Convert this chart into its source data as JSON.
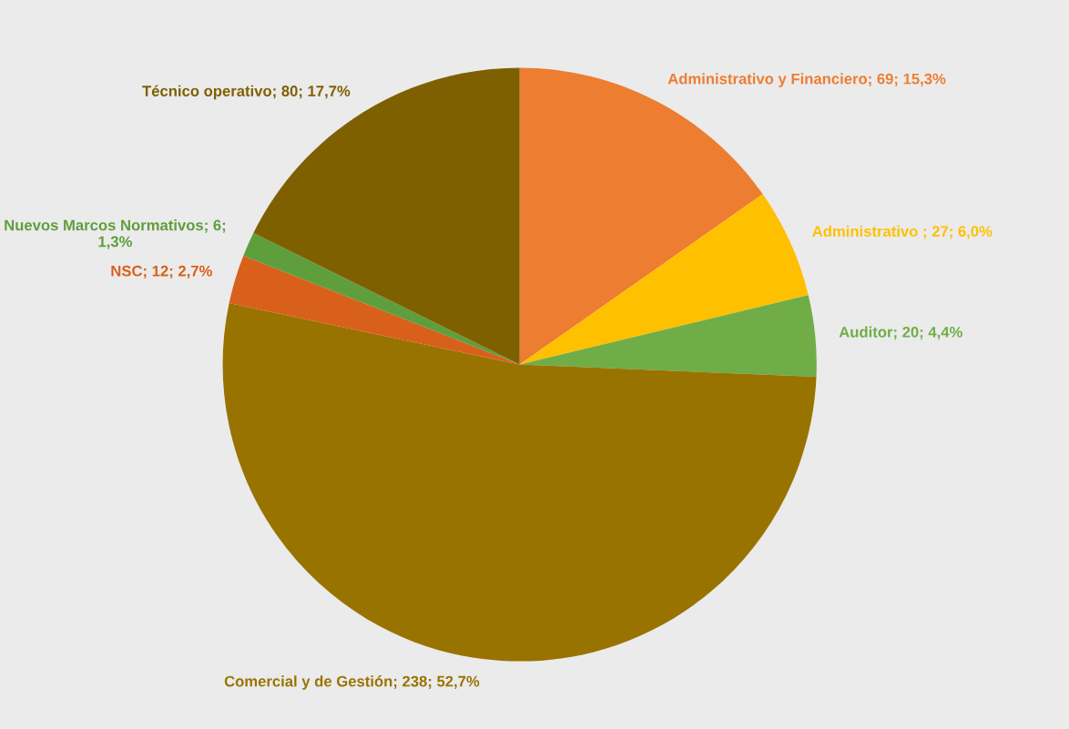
{
  "chart_data": {
    "type": "pie",
    "categories": [
      "Administrativo y Financiero",
      "Administrativo ",
      "Auditor",
      "Comercial y de Gestión",
      "NSC",
      "Nuevos Marcos Normativos",
      "Técnico operativo"
    ],
    "values": [
      69,
      27,
      20,
      238,
      12,
      6,
      80
    ],
    "value_labels": [
      "69; 15,3%",
      "27; 6,0%",
      "20; 4,4%",
      "238; 52,7%",
      "12; 2,7%",
      "6; 1,3%",
      "80; 17,7%"
    ],
    "colors": [
      "#ed7d31",
      "#ffc000",
      "#70ad47",
      "#997300",
      "#d9601a",
      "#5f9e3c",
      "#7f6000"
    ],
    "legend": false
  }
}
